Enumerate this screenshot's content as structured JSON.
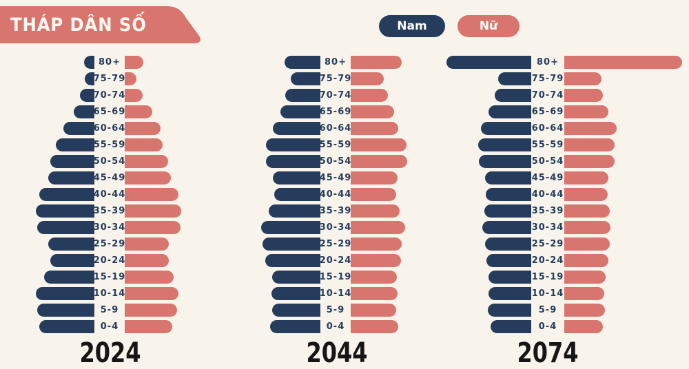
{
  "title": "THÁP DÂN SỐ",
  "legend": {
    "male_label": "Nam",
    "female_label": "Nữ"
  },
  "colors": {
    "male": "#253C5C",
    "female": "#D8756E",
    "background": "#F9F4EB",
    "banner": "#D8756E",
    "title_text": "#FDF8F0",
    "age_label": "#253C5C",
    "year_text": "#161616"
  },
  "chart_data": {
    "type": "bar",
    "subtype": "population-pyramid",
    "title": "THÁP DÂN SỐ",
    "legend_entries": [
      "Nam",
      "Nữ"
    ],
    "value_note": "no numeric axis shown; values are relative bar lengths in render px",
    "age_groups_top_to_bottom": [
      "80+",
      "75-79",
      "70-74",
      "65-69",
      "60-64",
      "55-59",
      "50-54",
      "45-49",
      "40-44",
      "35-39",
      "30-34",
      "25-29",
      "20-24",
      "15-19",
      "10-14",
      "5-9",
      "0-4"
    ],
    "pyramids": [
      {
        "year": "2024",
        "male": [
          15,
          14,
          21,
          30,
          45,
          56,
          64,
          67,
          80,
          85,
          83,
          67,
          64,
          73,
          85,
          83,
          80
        ],
        "female": [
          27,
          17,
          26,
          40,
          52,
          55,
          63,
          67,
          78,
          82,
          81,
          64,
          64,
          71,
          78,
          76,
          69
        ]
      },
      {
        "year": "2044",
        "male": [
          52,
          43,
          51,
          58,
          69,
          79,
          79,
          69,
          67,
          75,
          86,
          84,
          80,
          70,
          71,
          70,
          73
        ],
        "female": [
          74,
          48,
          54,
          63,
          69,
          81,
          82,
          68,
          66,
          71,
          79,
          74,
          73,
          67,
          68,
          66,
          69
        ]
      },
      {
        "year": "2074",
        "male": [
          123,
          48,
          53,
          62,
          73,
          77,
          76,
          67,
          66,
          68,
          71,
          67,
          65,
          62,
          62,
          63,
          59
        ],
        "female": [
          171,
          54,
          56,
          64,
          76,
          73,
          73,
          64,
          63,
          66,
          67,
          66,
          64,
          60,
          58,
          59,
          56
        ]
      }
    ]
  }
}
